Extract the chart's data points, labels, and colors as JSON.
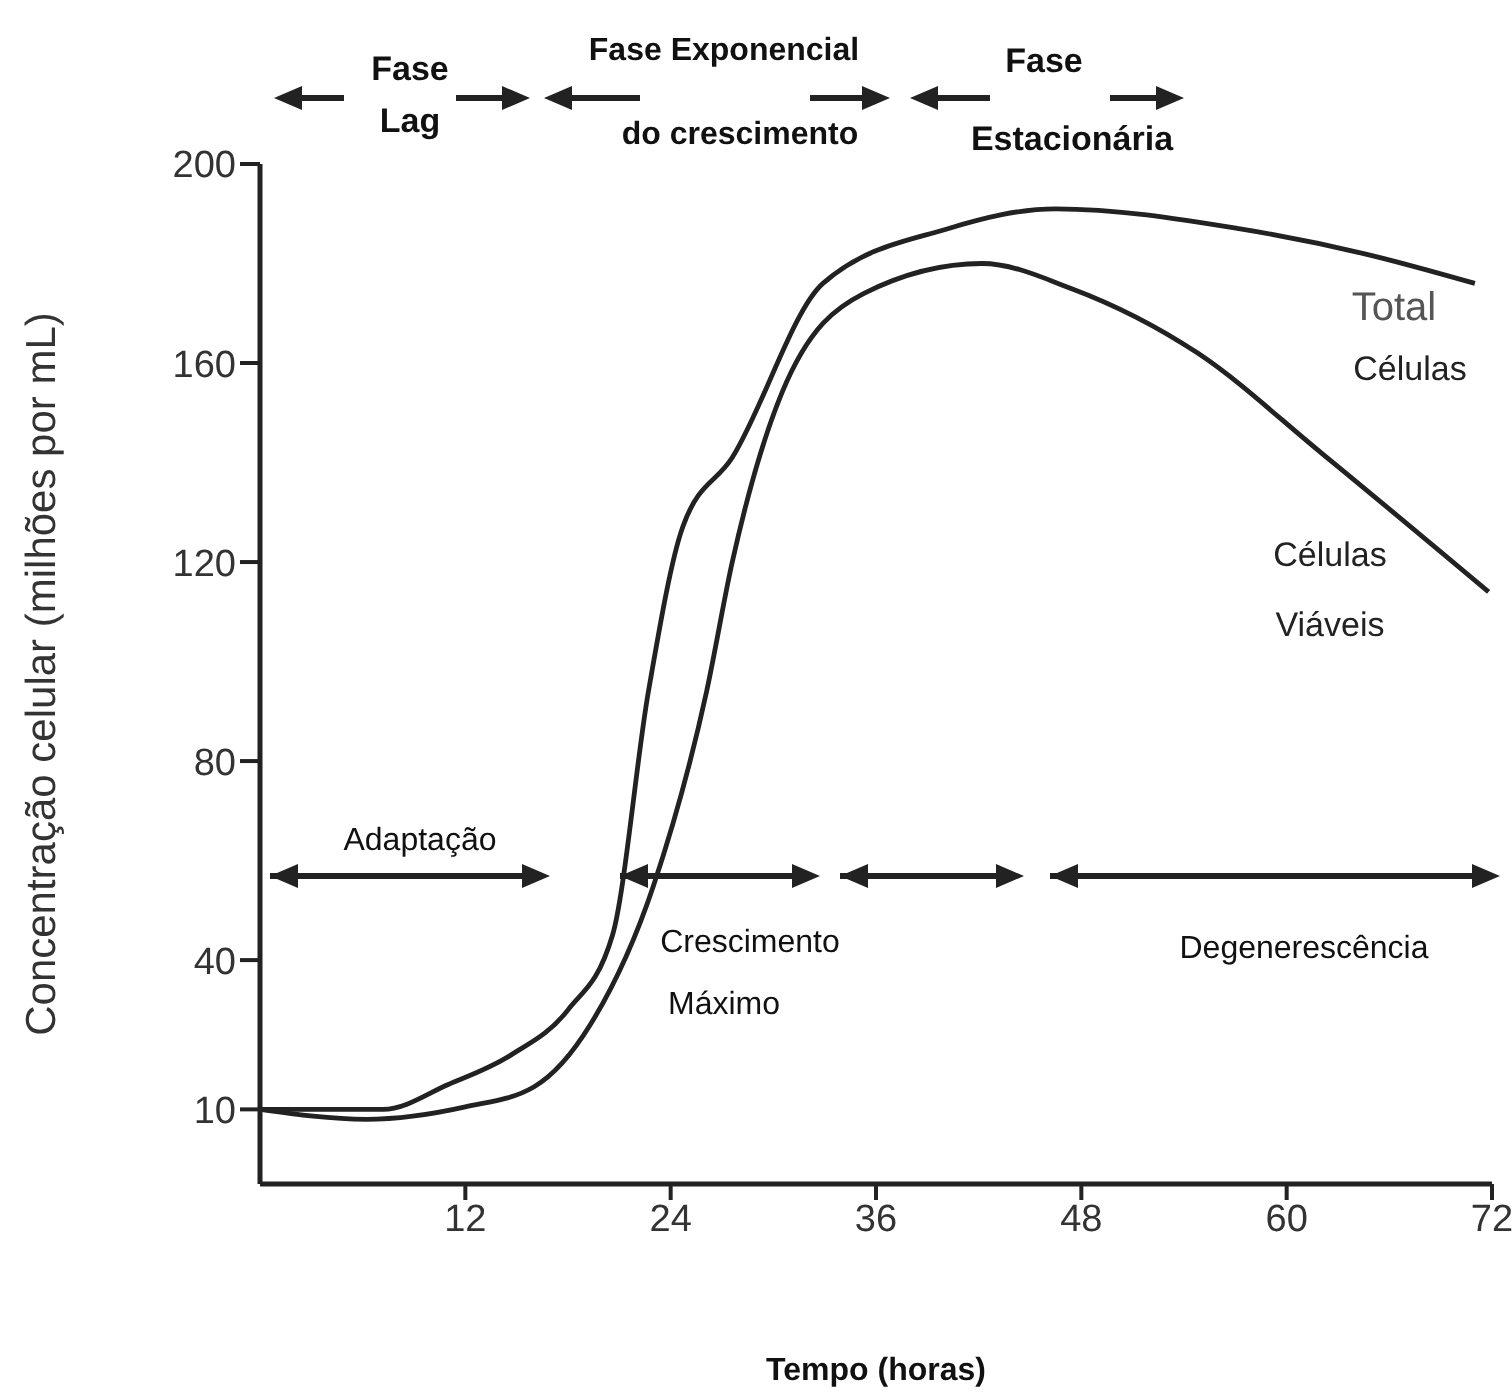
{
  "chart_data": {
    "type": "line",
    "xlabel": "Tempo (horas)",
    "ylabel": "Concentração celular (milhões por mL)",
    "xlim": [
      0,
      72
    ],
    "xticks": [
      12,
      24,
      36,
      48,
      60,
      72
    ],
    "ylim": [
      -5,
      200
    ],
    "yticks": [
      10,
      40,
      80,
      120,
      160,
      200
    ],
    "grid": false,
    "legend": false,
    "marker": "none",
    "line_style": "solid",
    "series": [
      {
        "name": "Total Células",
        "color": "#222222",
        "x": [
          0,
          7.2,
          11,
          14.7,
          18,
          20.6,
          22.7,
          24.7,
          27.6,
          32.9,
          40.2,
          46.5,
          57.2,
          64.5,
          71
        ],
        "values": [
          10,
          10,
          15,
          21,
          30,
          45,
          94,
          127,
          141,
          176,
          187,
          191,
          187,
          182,
          176
        ]
      },
      {
        "name": "Células Viáveis",
        "color": "#222222",
        "x": [
          0,
          6.2,
          12,
          16,
          19.3,
          23,
          26.1,
          27.6,
          30.5,
          35.3,
          42.2,
          47.4,
          54.8,
          62,
          71.8
        ],
        "values": [
          10,
          8,
          10.5,
          14.5,
          27,
          55,
          94,
          120,
          154,
          174,
          180,
          175,
          162,
          142,
          114
        ]
      }
    ],
    "annotations": [
      "Fase Lag",
      "Fase Exponencial do crescimento",
      "Fase Estacionária",
      "Adaptação",
      "Crescimento Máximo",
      "Degenerescência"
    ]
  }
}
